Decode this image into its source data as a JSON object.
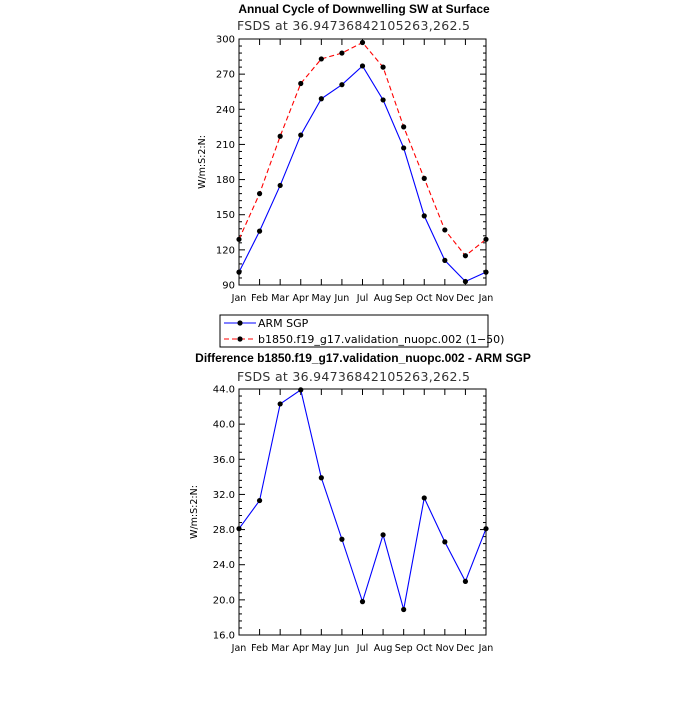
{
  "chart_data": [
    {
      "type": "line",
      "title": "Annual Cycle of Downwelling SW at Surface",
      "subtitle": "FSDS  at  36.94736842105263,262.5",
      "xlabel": "",
      "ylabel": "W/m:S:2:N:",
      "categories": [
        "Jan",
        "Feb",
        "Mar",
        "Apr",
        "May",
        "Jun",
        "Jul",
        "Aug",
        "Sep",
        "Oct",
        "Nov",
        "Dec",
        "Jan"
      ],
      "ylim": [
        90,
        300
      ],
      "yticks": [
        90,
        120,
        150,
        180,
        210,
        240,
        270,
        300
      ],
      "ytick_labels": [
        "90",
        "120",
        "150",
        "180",
        "210",
        "240",
        "270",
        "300"
      ],
      "grid": false,
      "legend_position": "bottom",
      "series": [
        {
          "name": "ARM SGP",
          "color": "#0000ff",
          "dash": "solid",
          "values": [
            101,
            136,
            175,
            218,
            249,
            261,
            277,
            248,
            207,
            149,
            111,
            93,
            101
          ]
        },
        {
          "name": "b1850.f19_g17.validation_nuopc.002 (1−50)",
          "color": "#ff0000",
          "dash": "dashed",
          "values": [
            129,
            168,
            217,
            262,
            283,
            288,
            297,
            276,
            225,
            181,
            137,
            115,
            129
          ]
        }
      ]
    },
    {
      "type": "line",
      "title": "Difference b1850.f19_g17.validation_nuopc.002 - ARM SGP",
      "subtitle": "FSDS  at  36.94736842105263,262.5",
      "xlabel": "",
      "ylabel": "W/m:S:2:N:",
      "categories": [
        "Jan",
        "Feb",
        "Mar",
        "Apr",
        "May",
        "Jun",
        "Jul",
        "Aug",
        "Sep",
        "Oct",
        "Nov",
        "Dec",
        "Jan"
      ],
      "ylim": [
        16,
        44
      ],
      "yticks": [
        16,
        20,
        24,
        28,
        32,
        36,
        40,
        44
      ],
      "ytick_labels": [
        "16.0",
        "20.0",
        "24.0",
        "28.0",
        "32.0",
        "36.0",
        "40.0",
        "44.0"
      ],
      "grid": false,
      "series": [
        {
          "color": "#0000ff",
          "dash": "solid",
          "values": [
            28.1,
            31.3,
            42.3,
            43.9,
            33.9,
            26.9,
            19.8,
            27.4,
            18.9,
            31.6,
            26.6,
            22.1,
            28.1
          ]
        }
      ]
    }
  ]
}
